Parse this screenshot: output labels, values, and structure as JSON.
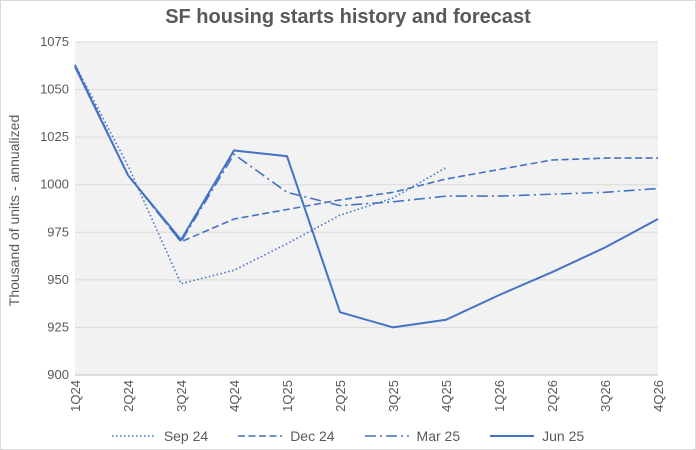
{
  "chart_data": {
    "type": "line",
    "title": "SF housing starts history and forecast",
    "xlabel": "",
    "ylabel": "Thousand  of units - annualized",
    "categories": [
      "1Q24",
      "2Q24",
      "3Q24",
      "4Q24",
      "1Q25",
      "2Q25",
      "3Q25",
      "4Q25",
      "1Q26",
      "2Q26",
      "3Q26",
      "4Q26"
    ],
    "ylim": [
      900,
      1075
    ],
    "yticks": [
      900,
      925,
      950,
      975,
      1000,
      1025,
      1050,
      1075
    ],
    "grid": true,
    "legend_position": "bottom",
    "series": [
      {
        "name": "Sep 24",
        "style": "dotted",
        "color": "#4472c4",
        "values": [
          1063,
          1010,
          948,
          955,
          969,
          984,
          993,
          1009,
          null,
          null,
          null,
          null
        ]
      },
      {
        "name": "Dec 24",
        "style": "dashed",
        "color": "#4472c4",
        "values": [
          1063,
          1005,
          970,
          982,
          987,
          992,
          996,
          1003,
          1008,
          1013,
          1014,
          1014
        ]
      },
      {
        "name": "Mar 25",
        "style": "dashdot",
        "color": "#4472c4",
        "values": [
          1063,
          1005,
          970,
          1016,
          996,
          989,
          991,
          994,
          994,
          995,
          996,
          998
        ]
      },
      {
        "name": "Jun 25",
        "style": "solid",
        "color": "#4472c4",
        "values": [
          1062,
          1005,
          971,
          1018,
          1015,
          933,
          925,
          929,
          942,
          954,
          967,
          982
        ]
      }
    ]
  },
  "colors": {
    "line": "#4472c4",
    "plot_bg": "#f2f2f2",
    "grid": "#d9d9d9",
    "text": "#595959"
  }
}
